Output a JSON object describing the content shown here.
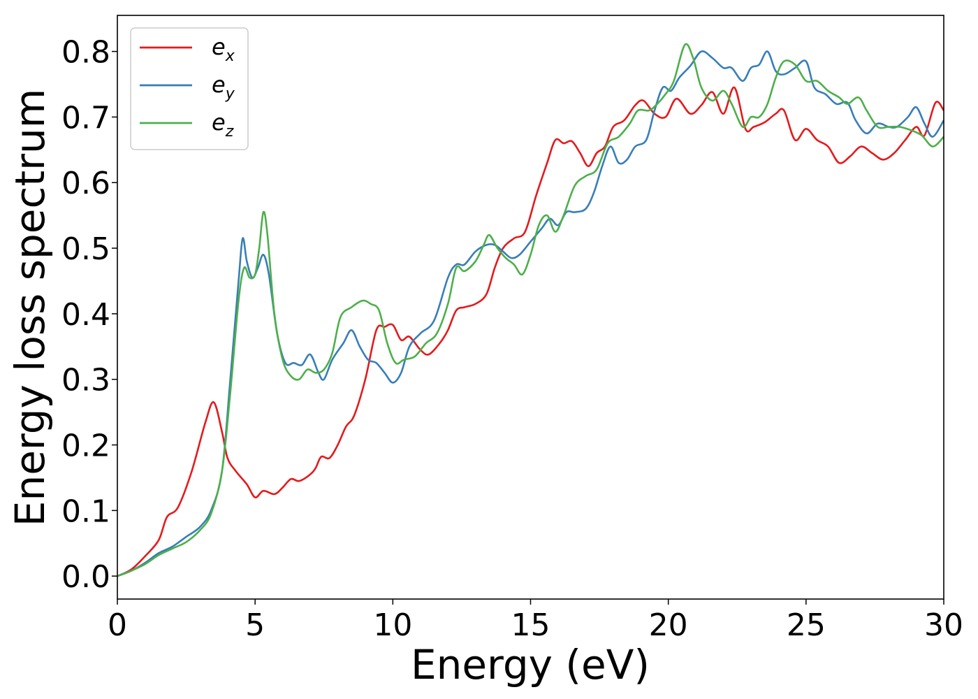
{
  "chart_data": {
    "type": "line",
    "title": "",
    "xlabel": "Energy (eV)",
    "ylabel": "Energy loss spectrum",
    "xlim": [
      0,
      30
    ],
    "ylim": [
      -0.035,
      0.855
    ],
    "xticks": [
      0,
      5,
      10,
      15,
      20,
      25,
      30
    ],
    "xtick_labels": [
      "0",
      "5",
      "10",
      "15",
      "20",
      "25",
      "30"
    ],
    "yticks": [
      0.0,
      0.1,
      0.2,
      0.3,
      0.4,
      0.5,
      0.6,
      0.7,
      0.8
    ],
    "ytick_labels": [
      "0.0",
      "0.1",
      "0.2",
      "0.3",
      "0.4",
      "0.5",
      "0.6",
      "0.7",
      "0.8"
    ],
    "grid": false,
    "legend_position": "top-left",
    "series": [
      {
        "name": "e_x",
        "label_base": "e",
        "label_sub": "x",
        "color": "#e41a1c",
        "points": [
          [
            0,
            0
          ],
          [
            0.5,
            0.01
          ],
          [
            1,
            0.03
          ],
          [
            1.5,
            0.055
          ],
          [
            1.8,
            0.09
          ],
          [
            2.2,
            0.105
          ],
          [
            2.7,
            0.16
          ],
          [
            3.2,
            0.235
          ],
          [
            3.5,
            0.265
          ],
          [
            3.8,
            0.22
          ],
          [
            4,
            0.18
          ],
          [
            4.3,
            0.16
          ],
          [
            4.7,
            0.14
          ],
          [
            5,
            0.12
          ],
          [
            5.3,
            0.13
          ],
          [
            5.7,
            0.125
          ],
          [
            6,
            0.135
          ],
          [
            6.3,
            0.148
          ],
          [
            6.6,
            0.145
          ],
          [
            7,
            0.155
          ],
          [
            7.2,
            0.165
          ],
          [
            7.4,
            0.182
          ],
          [
            7.7,
            0.18
          ],
          [
            8,
            0.2
          ],
          [
            8.3,
            0.228
          ],
          [
            8.6,
            0.245
          ],
          [
            9,
            0.3
          ],
          [
            9.4,
            0.375
          ],
          [
            9.7,
            0.38
          ],
          [
            10,
            0.383
          ],
          [
            10.3,
            0.36
          ],
          [
            10.6,
            0.365
          ],
          [
            11,
            0.345
          ],
          [
            11.3,
            0.338
          ],
          [
            11.7,
            0.355
          ],
          [
            12,
            0.375
          ],
          [
            12.3,
            0.405
          ],
          [
            12.6,
            0.41
          ],
          [
            13,
            0.415
          ],
          [
            13.4,
            0.43
          ],
          [
            13.7,
            0.47
          ],
          [
            14,
            0.5
          ],
          [
            14.4,
            0.515
          ],
          [
            14.8,
            0.525
          ],
          [
            15.2,
            0.58
          ],
          [
            15.6,
            0.63
          ],
          [
            15.9,
            0.665
          ],
          [
            16.2,
            0.66
          ],
          [
            16.5,
            0.663
          ],
          [
            16.8,
            0.645
          ],
          [
            17.1,
            0.625
          ],
          [
            17.4,
            0.645
          ],
          [
            17.7,
            0.655
          ],
          [
            18,
            0.685
          ],
          [
            18.4,
            0.695
          ],
          [
            18.8,
            0.718
          ],
          [
            19.1,
            0.725
          ],
          [
            19.5,
            0.705
          ],
          [
            19.9,
            0.7
          ],
          [
            20.3,
            0.728
          ],
          [
            20.8,
            0.705
          ],
          [
            21.2,
            0.718
          ],
          [
            21.6,
            0.738
          ],
          [
            22,
            0.705
          ],
          [
            22.4,
            0.745
          ],
          [
            22.8,
            0.682
          ],
          [
            23.1,
            0.685
          ],
          [
            23.5,
            0.692
          ],
          [
            23.9,
            0.705
          ],
          [
            24.2,
            0.71
          ],
          [
            24.6,
            0.665
          ],
          [
            25,
            0.682
          ],
          [
            25.4,
            0.665
          ],
          [
            25.8,
            0.655
          ],
          [
            26.2,
            0.63
          ],
          [
            26.6,
            0.64
          ],
          [
            27,
            0.655
          ],
          [
            27.4,
            0.645
          ],
          [
            27.8,
            0.635
          ],
          [
            28.2,
            0.645
          ],
          [
            28.6,
            0.665
          ],
          [
            29,
            0.685
          ],
          [
            29.3,
            0.672
          ],
          [
            29.7,
            0.722
          ],
          [
            30,
            0.71
          ]
        ]
      },
      {
        "name": "e_y",
        "label_base": "e",
        "label_sub": "y",
        "color": "#377eb8",
        "points": [
          [
            0,
            0
          ],
          [
            0.5,
            0.008
          ],
          [
            1,
            0.02
          ],
          [
            1.5,
            0.035
          ],
          [
            2,
            0.045
          ],
          [
            2.5,
            0.06
          ],
          [
            3,
            0.075
          ],
          [
            3.4,
            0.1
          ],
          [
            3.8,
            0.16
          ],
          [
            4.1,
            0.3
          ],
          [
            4.4,
            0.45
          ],
          [
            4.55,
            0.515
          ],
          [
            4.7,
            0.48
          ],
          [
            4.9,
            0.455
          ],
          [
            5.1,
            0.47
          ],
          [
            5.3,
            0.49
          ],
          [
            5.5,
            0.46
          ],
          [
            5.8,
            0.37
          ],
          [
            6.1,
            0.325
          ],
          [
            6.4,
            0.325
          ],
          [
            6.7,
            0.322
          ],
          [
            7,
            0.338
          ],
          [
            7.3,
            0.31
          ],
          [
            7.5,
            0.3
          ],
          [
            7.8,
            0.33
          ],
          [
            8.2,
            0.355
          ],
          [
            8.5,
            0.375
          ],
          [
            8.8,
            0.35
          ],
          [
            9.1,
            0.33
          ],
          [
            9.4,
            0.325
          ],
          [
            9.7,
            0.31
          ],
          [
            10,
            0.295
          ],
          [
            10.3,
            0.31
          ],
          [
            10.6,
            0.35
          ],
          [
            11,
            0.37
          ],
          [
            11.5,
            0.39
          ],
          [
            12,
            0.455
          ],
          [
            12.3,
            0.475
          ],
          [
            12.6,
            0.475
          ],
          [
            13,
            0.495
          ],
          [
            13.4,
            0.505
          ],
          [
            13.7,
            0.505
          ],
          [
            14,
            0.495
          ],
          [
            14.3,
            0.485
          ],
          [
            14.6,
            0.49
          ],
          [
            15,
            0.51
          ],
          [
            15.4,
            0.53
          ],
          [
            15.7,
            0.545
          ],
          [
            16,
            0.535
          ],
          [
            16.3,
            0.555
          ],
          [
            16.6,
            0.555
          ],
          [
            17,
            0.56
          ],
          [
            17.3,
            0.585
          ],
          [
            17.6,
            0.625
          ],
          [
            17.9,
            0.655
          ],
          [
            18.2,
            0.63
          ],
          [
            18.5,
            0.635
          ],
          [
            18.8,
            0.655
          ],
          [
            19.2,
            0.665
          ],
          [
            19.5,
            0.71
          ],
          [
            19.8,
            0.745
          ],
          [
            20.1,
            0.74
          ],
          [
            20.4,
            0.76
          ],
          [
            20.8,
            0.778
          ],
          [
            21.2,
            0.8
          ],
          [
            21.6,
            0.79
          ],
          [
            22,
            0.775
          ],
          [
            22.3,
            0.775
          ],
          [
            22.7,
            0.755
          ],
          [
            23,
            0.775
          ],
          [
            23.3,
            0.78
          ],
          [
            23.6,
            0.8
          ],
          [
            23.9,
            0.77
          ],
          [
            24.2,
            0.765
          ],
          [
            24.6,
            0.775
          ],
          [
            25,
            0.785
          ],
          [
            25.3,
            0.745
          ],
          [
            25.7,
            0.735
          ],
          [
            26.1,
            0.72
          ],
          [
            26.5,
            0.722
          ],
          [
            26.8,
            0.695
          ],
          [
            27.2,
            0.675
          ],
          [
            27.6,
            0.69
          ],
          [
            28,
            0.685
          ],
          [
            28.3,
            0.685
          ],
          [
            28.7,
            0.7
          ],
          [
            29,
            0.715
          ],
          [
            29.3,
            0.69
          ],
          [
            29.6,
            0.67
          ],
          [
            30,
            0.695
          ]
        ]
      },
      {
        "name": "e_z",
        "label_base": "e",
        "label_sub": "z",
        "color": "#4daf4a",
        "points": [
          [
            0,
            0
          ],
          [
            0.5,
            0.008
          ],
          [
            1,
            0.018
          ],
          [
            1.5,
            0.032
          ],
          [
            2,
            0.042
          ],
          [
            2.5,
            0.052
          ],
          [
            3,
            0.07
          ],
          [
            3.4,
            0.095
          ],
          [
            3.8,
            0.16
          ],
          [
            4.1,
            0.28
          ],
          [
            4.4,
            0.42
          ],
          [
            4.6,
            0.47
          ],
          [
            4.8,
            0.455
          ],
          [
            5,
            0.46
          ],
          [
            5.15,
            0.5
          ],
          [
            5.3,
            0.555
          ],
          [
            5.45,
            0.52
          ],
          [
            5.7,
            0.4
          ],
          [
            6,
            0.33
          ],
          [
            6.3,
            0.305
          ],
          [
            6.6,
            0.3
          ],
          [
            6.9,
            0.315
          ],
          [
            7.2,
            0.31
          ],
          [
            7.5,
            0.315
          ],
          [
            7.8,
            0.34
          ],
          [
            8.1,
            0.395
          ],
          [
            8.5,
            0.41
          ],
          [
            8.9,
            0.42
          ],
          [
            9.2,
            0.415
          ],
          [
            9.5,
            0.405
          ],
          [
            9.8,
            0.355
          ],
          [
            10.1,
            0.325
          ],
          [
            10.4,
            0.33
          ],
          [
            10.8,
            0.335
          ],
          [
            11.2,
            0.355
          ],
          [
            11.6,
            0.37
          ],
          [
            12,
            0.415
          ],
          [
            12.3,
            0.47
          ],
          [
            12.6,
            0.465
          ],
          [
            13,
            0.48
          ],
          [
            13.3,
            0.505
          ],
          [
            13.5,
            0.52
          ],
          [
            13.8,
            0.5
          ],
          [
            14.1,
            0.485
          ],
          [
            14.4,
            0.475
          ],
          [
            14.7,
            0.46
          ],
          [
            15,
            0.49
          ],
          [
            15.3,
            0.535
          ],
          [
            15.6,
            0.55
          ],
          [
            15.9,
            0.525
          ],
          [
            16.2,
            0.55
          ],
          [
            16.6,
            0.595
          ],
          [
            17,
            0.61
          ],
          [
            17.4,
            0.62
          ],
          [
            17.8,
            0.66
          ],
          [
            18.2,
            0.67
          ],
          [
            18.6,
            0.69
          ],
          [
            18.9,
            0.71
          ],
          [
            19.3,
            0.71
          ],
          [
            19.6,
            0.72
          ],
          [
            19.9,
            0.735
          ],
          [
            20.2,
            0.755
          ],
          [
            20.6,
            0.81
          ],
          [
            20.9,
            0.79
          ],
          [
            21.2,
            0.745
          ],
          [
            21.6,
            0.725
          ],
          [
            22,
            0.74
          ],
          [
            22.3,
            0.72
          ],
          [
            22.7,
            0.685
          ],
          [
            23,
            0.7
          ],
          [
            23.3,
            0.7
          ],
          [
            23.6,
            0.72
          ],
          [
            23.9,
            0.76
          ],
          [
            24.2,
            0.785
          ],
          [
            24.6,
            0.78
          ],
          [
            25,
            0.755
          ],
          [
            25.4,
            0.755
          ],
          [
            25.8,
            0.74
          ],
          [
            26.2,
            0.73
          ],
          [
            26.5,
            0.72
          ],
          [
            26.9,
            0.73
          ],
          [
            27.2,
            0.71
          ],
          [
            27.6,
            0.685
          ],
          [
            28,
            0.685
          ],
          [
            28.4,
            0.685
          ],
          [
            28.8,
            0.68
          ],
          [
            29.2,
            0.672
          ],
          [
            29.6,
            0.655
          ],
          [
            30,
            0.67
          ]
        ]
      }
    ]
  }
}
